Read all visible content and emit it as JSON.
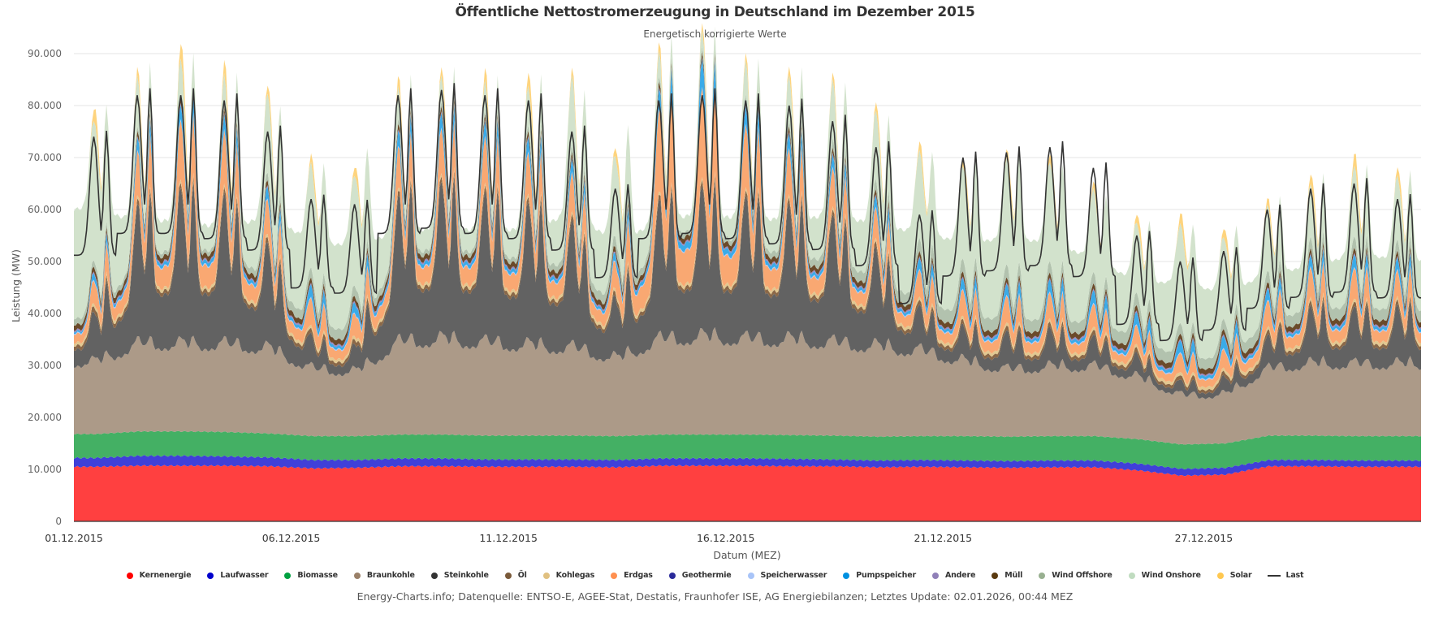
{
  "chart_data": {
    "type": "area",
    "stacked": true,
    "title": "Öffentliche Nettostromerzeugung in Deutschland im Dezember 2015",
    "subtitle": "Energetisch korrigierte Werte",
    "xlabel": "Datum (MEZ)",
    "ylabel": "Leistung (MW)",
    "ylim": [
      0,
      90000
    ],
    "yticks": [
      0,
      10000,
      20000,
      30000,
      40000,
      50000,
      60000,
      70000,
      80000,
      90000
    ],
    "ytick_labels": [
      "0",
      "10.000",
      "20.000",
      "30.000",
      "40.000",
      "50.000",
      "60.000",
      "70.000",
      "80.000",
      "90.000"
    ],
    "xlim_days": [
      0,
      31
    ],
    "xticks_days": [
      0,
      5,
      10,
      15,
      20,
      26
    ],
    "xtick_labels": [
      "01.12.2015",
      "06.12.2015",
      "11.12.2015",
      "16.12.2015",
      "21.12.2015",
      "27.12.2015"
    ],
    "grid": true,
    "legend_position": "bottom",
    "x_resolution": "6h (4 points per day, 01.12.2015 00:00 – 31.12.2015 18:00)",
    "daily_profile_note": "values are per-day anchors; rendered with a diurnal shape",
    "series": [
      {
        "name": "Kernenergie",
        "color": "#ff4040",
        "legend_color": "#ff0000",
        "daily": [
          10500,
          10700,
          10700,
          10700,
          10600,
          10200,
          10300,
          10600,
          10600,
          10500,
          10500,
          10500,
          10400,
          10700,
          10700,
          10700,
          10600,
          10600,
          10400,
          10500,
          10400,
          10300,
          10400,
          10400,
          9800,
          8800,
          9000,
          10600,
          10600,
          10500,
          10500
        ]
      },
      {
        "name": "Laufwasser",
        "color": "#4040d8",
        "legend_color": "#0000cc",
        "daily": [
          1700,
          1900,
          1900,
          1800,
          1700,
          1600,
          1500,
          1500,
          1500,
          1400,
          1400,
          1400,
          1400,
          1400,
          1400,
          1400,
          1400,
          1300,
          1300,
          1300,
          1300,
          1300,
          1300,
          1300,
          1300,
          1300,
          1300,
          1200,
          1200,
          1200,
          1200
        ]
      },
      {
        "name": "Biomasse",
        "color": "#44b064",
        "legend_color": "#00a040",
        "daily": [
          4600,
          4700,
          4700,
          4700,
          4600,
          4600,
          4600,
          4600,
          4600,
          4600,
          4600,
          4600,
          4600,
          4600,
          4600,
          4600,
          4600,
          4600,
          4600,
          4600,
          4700,
          4700,
          4700,
          4700,
          4700,
          4700,
          4700,
          4700,
          4700,
          4700,
          4700
        ]
      },
      {
        "name": "Braunkohle",
        "color": "#ac9a88",
        "legend_color": "#9a8068",
        "daily": [
          14000,
          17000,
          17000,
          17000,
          16500,
          13000,
          12500,
          18000,
          18500,
          18000,
          17500,
          17000,
          15000,
          18500,
          19000,
          18500,
          18500,
          18000,
          17500,
          16500,
          14500,
          13000,
          13500,
          13500,
          12000,
          9500,
          9500,
          13000,
          14000,
          14000,
          14000
        ]
      },
      {
        "name": "Steinkohle",
        "color": "#626262",
        "legend_color": "#333333",
        "daily": [
          6000,
          18000,
          20000,
          19000,
          13000,
          3500,
          3000,
          19000,
          20000,
          19000,
          18000,
          16000,
          7000,
          18000,
          19000,
          18000,
          17000,
          16000,
          12000,
          5000,
          4000,
          4500,
          4500,
          3500,
          2500,
          1500,
          2000,
          4000,
          7000,
          7000,
          7000
        ]
      },
      {
        "name": "Öl",
        "color": "#8a6848",
        "legend_color": "#7a5a3a",
        "daily": [
          900,
          900,
          900,
          900,
          900,
          800,
          800,
          900,
          900,
          900,
          900,
          900,
          800,
          900,
          900,
          900,
          900,
          900,
          900,
          800,
          800,
          800,
          800,
          800,
          800,
          700,
          700,
          800,
          800,
          800,
          800
        ]
      },
      {
        "name": "Kohlegas",
        "color": "#e2c890",
        "legend_color": "#e0c080",
        "daily": [
          600,
          600,
          600,
          600,
          600,
          600,
          600,
          600,
          600,
          600,
          600,
          600,
          600,
          600,
          600,
          600,
          600,
          600,
          600,
          600,
          600,
          600,
          600,
          600,
          600,
          600,
          600,
          600,
          600,
          600,
          600
        ]
      },
      {
        "name": "Erdgas",
        "color": "#f9a872",
        "legend_color": "#ff9050",
        "daily": [
          3000,
          6000,
          8000,
          7000,
          4500,
          3500,
          3000,
          5500,
          6000,
          6000,
          5500,
          5000,
          3500,
          11000,
          12000,
          8000,
          6000,
          5000,
          4000,
          3500,
          3500,
          3500,
          3500,
          3000,
          2500,
          2500,
          2500,
          3500,
          4000,
          4000,
          3500
        ]
      },
      {
        "name": "Geothermie",
        "color": "#3a3a9a",
        "legend_color": "#2a2a9a",
        "daily": [
          0,
          0,
          0,
          0,
          0,
          0,
          0,
          0,
          0,
          0,
          0,
          0,
          0,
          0,
          0,
          0,
          0,
          0,
          0,
          0,
          0,
          0,
          0,
          0,
          0,
          0,
          0,
          0,
          0,
          0,
          0
        ]
      },
      {
        "name": "Speicherwasser",
        "color": "#b0c8f8",
        "legend_color": "#a8c4f8",
        "daily": [
          200,
          200,
          200,
          200,
          200,
          200,
          200,
          200,
          200,
          200,
          200,
          200,
          200,
          200,
          200,
          200,
          200,
          200,
          200,
          200,
          200,
          200,
          200,
          200,
          200,
          200,
          200,
          200,
          200,
          200,
          200
        ]
      },
      {
        "name": "Pumpspeicher",
        "color": "#3aabe8",
        "legend_color": "#0090e0",
        "daily": [
          800,
          1500,
          1800,
          1800,
          1400,
          1500,
          1200,
          1800,
          1800,
          1800,
          1700,
          1500,
          900,
          2500,
          3500,
          2000,
          1800,
          1500,
          1300,
          1300,
          1300,
          1300,
          1500,
          1500,
          1500,
          1400,
          1500,
          1300,
          1400,
          1500,
          1400
        ]
      },
      {
        "name": "Andere",
        "color": "#9a88c0",
        "legend_color": "#9080b8",
        "daily": [
          300,
          300,
          300,
          300,
          300,
          300,
          300,
          300,
          300,
          300,
          300,
          300,
          300,
          300,
          300,
          300,
          300,
          300,
          300,
          300,
          300,
          300,
          300,
          300,
          300,
          300,
          300,
          300,
          300,
          300,
          300
        ]
      },
      {
        "name": "Müll",
        "color": "#6b4a2a",
        "legend_color": "#5a3a10",
        "daily": [
          1000,
          1000,
          1000,
          1000,
          1000,
          1000,
          1000,
          1000,
          1000,
          1000,
          1000,
          1000,
          1000,
          1000,
          1000,
          1000,
          1000,
          1000,
          1000,
          1000,
          1000,
          1000,
          1000,
          1000,
          1000,
          1000,
          1000,
          1000,
          1000,
          1000,
          1000
        ]
      },
      {
        "name": "Wind Offshore",
        "color": "#b2c2ae",
        "legend_color": "#98b090",
        "daily": [
          1200,
          800,
          800,
          800,
          1500,
          2000,
          2000,
          900,
          900,
          900,
          1000,
          1500,
          2000,
          900,
          900,
          1000,
          1200,
          1800,
          2000,
          2500,
          2500,
          2500,
          2200,
          2200,
          2500,
          2000,
          2000,
          2200,
          2200,
          2200,
          2200
        ]
      },
      {
        "name": "Wind Onshore",
        "color": "#d2e2cc",
        "legend_color": "#c0dcc0",
        "daily": [
          24000,
          8000,
          6000,
          5000,
          14000,
          18000,
          19000,
          5000,
          4500,
          5000,
          7000,
          12000,
          14000,
          4000,
          3000,
          6000,
          8000,
          10000,
          12000,
          15000,
          16000,
          18000,
          17000,
          14000,
          12000,
          17000,
          14000,
          11000,
          9000,
          12000,
          11000
        ]
      },
      {
        "name": "Solar",
        "color": "#fed47e",
        "legend_color": "#ffc850",
        "daily": [
          3500,
          2500,
          4500,
          4000,
          2500,
          2500,
          2500,
          3000,
          2500,
          3500,
          4000,
          2000,
          2500,
          2500,
          2000,
          2000,
          2500,
          2000,
          2500,
          2500,
          2000,
          2500,
          2500,
          2000,
          2500,
          3000,
          2500,
          2000,
          3000,
          3500,
          2500
        ]
      }
    ],
    "line_series": {
      "name": "Last",
      "color": "#333333",
      "daily_mean": [
        62000,
        68000,
        68000,
        67000,
        63000,
        53000,
        52000,
        68000,
        69000,
        68000,
        67000,
        63000,
        55000,
        67000,
        68000,
        67000,
        66000,
        64000,
        60000,
        50000,
        58000,
        59000,
        60000,
        57000,
        46000,
        42000,
        44000,
        50000,
        53000,
        54000,
        52000
      ],
      "daily_amplitude": [
        12000,
        14000,
        14000,
        14000,
        12000,
        9000,
        9000,
        14000,
        14000,
        14000,
        14000,
        12000,
        9000,
        14000,
        14000,
        14000,
        14000,
        13000,
        12000,
        9000,
        12000,
        12000,
        12000,
        11000,
        9000,
        8000,
        8000,
        10000,
        11000,
        11000,
        10000
      ]
    }
  },
  "legend": [
    {
      "label": "Kernenergie",
      "symbol": "dot",
      "color": "#ff0000"
    },
    {
      "label": "Laufwasser",
      "symbol": "dot",
      "color": "#0000cc"
    },
    {
      "label": "Biomasse",
      "symbol": "dot",
      "color": "#00a040"
    },
    {
      "label": "Braunkohle",
      "symbol": "dot",
      "color": "#9a8068"
    },
    {
      "label": "Steinkohle",
      "symbol": "dot",
      "color": "#333333"
    },
    {
      "label": "Öl",
      "symbol": "dot",
      "color": "#7a5a3a"
    },
    {
      "label": "Kohlegas",
      "symbol": "dot",
      "color": "#e0c080"
    },
    {
      "label": "Erdgas",
      "symbol": "dot",
      "color": "#ff9050"
    },
    {
      "label": "Geothermie",
      "symbol": "dot",
      "color": "#2a2a9a"
    },
    {
      "label": "Speicherwasser",
      "symbol": "dot",
      "color": "#a8c4f8"
    },
    {
      "label": "Pumpspeicher",
      "symbol": "dot",
      "color": "#0090e0"
    },
    {
      "label": "Andere",
      "symbol": "dot",
      "color": "#9080b8"
    },
    {
      "label": "Müll",
      "symbol": "dot",
      "color": "#5a3a10"
    },
    {
      "label": "Wind Offshore",
      "symbol": "dot",
      "color": "#98b090"
    },
    {
      "label": "Wind Onshore",
      "symbol": "dot",
      "color": "#c0dcc0"
    },
    {
      "label": "Solar",
      "symbol": "dot",
      "color": "#ffc850"
    },
    {
      "label": "Last",
      "symbol": "line",
      "color": "#333333"
    }
  ],
  "credits": "Energy-Charts.info; Datenquelle: ENTSO-E, AGEE-Stat, Destatis, Fraunhofer ISE, AG Energiebilanzen; Letztes Update: 02.01.2026, 00:44 MEZ"
}
